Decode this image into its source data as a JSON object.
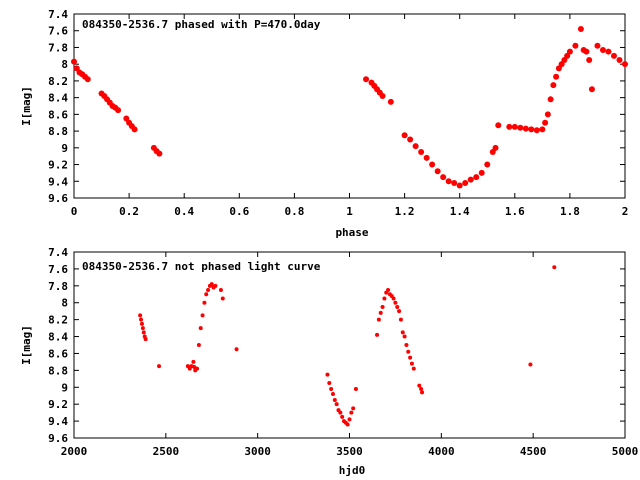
{
  "point_color": "#ff0000",
  "chart_data": [
    {
      "type": "scatter",
      "title": "084350-2536.7 phased with P=470.0day",
      "xlabel": "phase",
      "ylabel": "I[mag]",
      "xlim": [
        0,
        2
      ],
      "ylim": [
        7.4,
        9.6
      ],
      "y_inverted": true,
      "grid": false,
      "x_ticks": [
        "0",
        "0.2",
        "0.4",
        "0.6",
        "0.8",
        "1",
        "1.2",
        "1.4",
        "1.6",
        "1.8",
        "2"
      ],
      "y_ticks": [
        "7.4",
        "7.6",
        "7.8",
        "8",
        "8.2",
        "8.4",
        "8.6",
        "8.8",
        "9",
        "9.2",
        "9.4",
        "9.6"
      ],
      "series": [
        {
          "x": [
            0.0,
            0.01,
            0.02,
            0.03,
            0.04,
            0.05,
            0.1,
            0.11,
            0.12,
            0.13,
            0.14,
            0.15,
            0.16,
            0.19,
            0.2,
            0.21,
            0.22,
            0.29,
            0.3,
            0.31,
            1.06,
            1.08,
            1.09,
            1.1,
            1.11,
            1.12,
            1.15,
            1.2,
            1.22,
            1.24,
            1.26,
            1.28,
            1.3,
            1.32,
            1.34,
            1.36,
            1.38,
            1.4,
            1.42,
            1.44,
            1.46,
            1.48,
            1.5,
            1.52,
            1.53,
            1.54,
            1.58,
            1.6,
            1.62,
            1.64,
            1.66,
            1.68,
            1.7,
            1.71,
            1.72,
            1.73,
            1.74,
            1.75,
            1.76,
            1.77,
            1.78,
            1.79,
            1.8,
            1.82,
            1.84,
            1.85,
            1.86,
            1.87,
            1.88,
            1.9,
            1.92,
            1.94,
            1.96,
            1.98,
            2.0
          ],
          "y": [
            7.97,
            8.05,
            8.1,
            8.12,
            8.15,
            8.18,
            8.35,
            8.38,
            8.42,
            8.46,
            8.5,
            8.52,
            8.55,
            8.65,
            8.7,
            8.74,
            8.78,
            9.0,
            9.04,
            9.07,
            8.18,
            8.22,
            8.26,
            8.3,
            8.34,
            8.38,
            8.45,
            8.85,
            8.9,
            8.98,
            9.05,
            9.12,
            9.2,
            9.28,
            9.35,
            9.4,
            9.42,
            9.45,
            9.42,
            9.38,
            9.35,
            9.3,
            9.2,
            9.05,
            9.0,
            8.73,
            8.75,
            8.75,
            8.76,
            8.77,
            8.78,
            8.79,
            8.78,
            8.7,
            8.6,
            8.42,
            8.25,
            8.15,
            8.05,
            8.0,
            7.95,
            7.9,
            7.85,
            7.78,
            7.58,
            7.83,
            7.85,
            7.95,
            8.3,
            7.78,
            7.83,
            7.85,
            7.9,
            7.95,
            8.0
          ]
        }
      ]
    },
    {
      "type": "scatter",
      "title": "084350-2536.7 not phased light curve",
      "xlabel": "hjd0",
      "ylabel": "I[mag]",
      "xlim": [
        2000,
        5000
      ],
      "ylim": [
        7.4,
        9.6
      ],
      "y_inverted": true,
      "grid": false,
      "x_ticks": [
        "2000",
        "2500",
        "3000",
        "3500",
        "4000",
        "4500",
        "5000"
      ],
      "y_ticks": [
        "7.4",
        "7.6",
        "7.8",
        "8",
        "8.2",
        "8.4",
        "8.6",
        "8.8",
        "9",
        "9.2",
        "9.4",
        "9.6"
      ],
      "series": [
        {
          "x": [
            2360,
            2365,
            2370,
            2375,
            2380,
            2385,
            2390,
            2463,
            2620,
            2630,
            2640,
            2650,
            2655,
            2660,
            2670,
            2680,
            2690,
            2700,
            2710,
            2720,
            2730,
            2740,
            2750,
            2760,
            2770,
            2800,
            2810,
            2885,
            3380,
            3390,
            3400,
            3410,
            3420,
            3430,
            3440,
            3450,
            3460,
            3470,
            3480,
            3490,
            3500,
            3510,
            3520,
            3535,
            3650,
            3660,
            3670,
            3680,
            3690,
            3700,
            3710,
            3720,
            3730,
            3740,
            3750,
            3760,
            3770,
            3780,
            3790,
            3800,
            3810,
            3820,
            3830,
            3840,
            3850,
            3880,
            3890,
            3895,
            4485,
            4615
          ],
          "y": [
            8.15,
            8.2,
            8.25,
            8.3,
            8.35,
            8.4,
            8.43,
            8.75,
            8.75,
            8.78,
            8.75,
            8.7,
            8.76,
            8.8,
            8.78,
            8.5,
            8.3,
            8.15,
            8.0,
            7.9,
            7.85,
            7.8,
            7.78,
            7.82,
            7.8,
            7.85,
            7.95,
            8.55,
            8.85,
            8.95,
            9.02,
            9.08,
            9.15,
            9.2,
            9.27,
            9.3,
            9.35,
            9.4,
            9.42,
            9.44,
            9.38,
            9.3,
            9.25,
            9.02,
            8.38,
            8.2,
            8.12,
            8.05,
            7.95,
            7.88,
            7.85,
            7.9,
            7.92,
            7.95,
            8.0,
            8.05,
            8.1,
            8.2,
            8.35,
            8.4,
            8.5,
            8.58,
            8.65,
            8.72,
            8.78,
            8.98,
            9.02,
            9.06,
            8.73,
            7.58
          ]
        }
      ]
    }
  ]
}
